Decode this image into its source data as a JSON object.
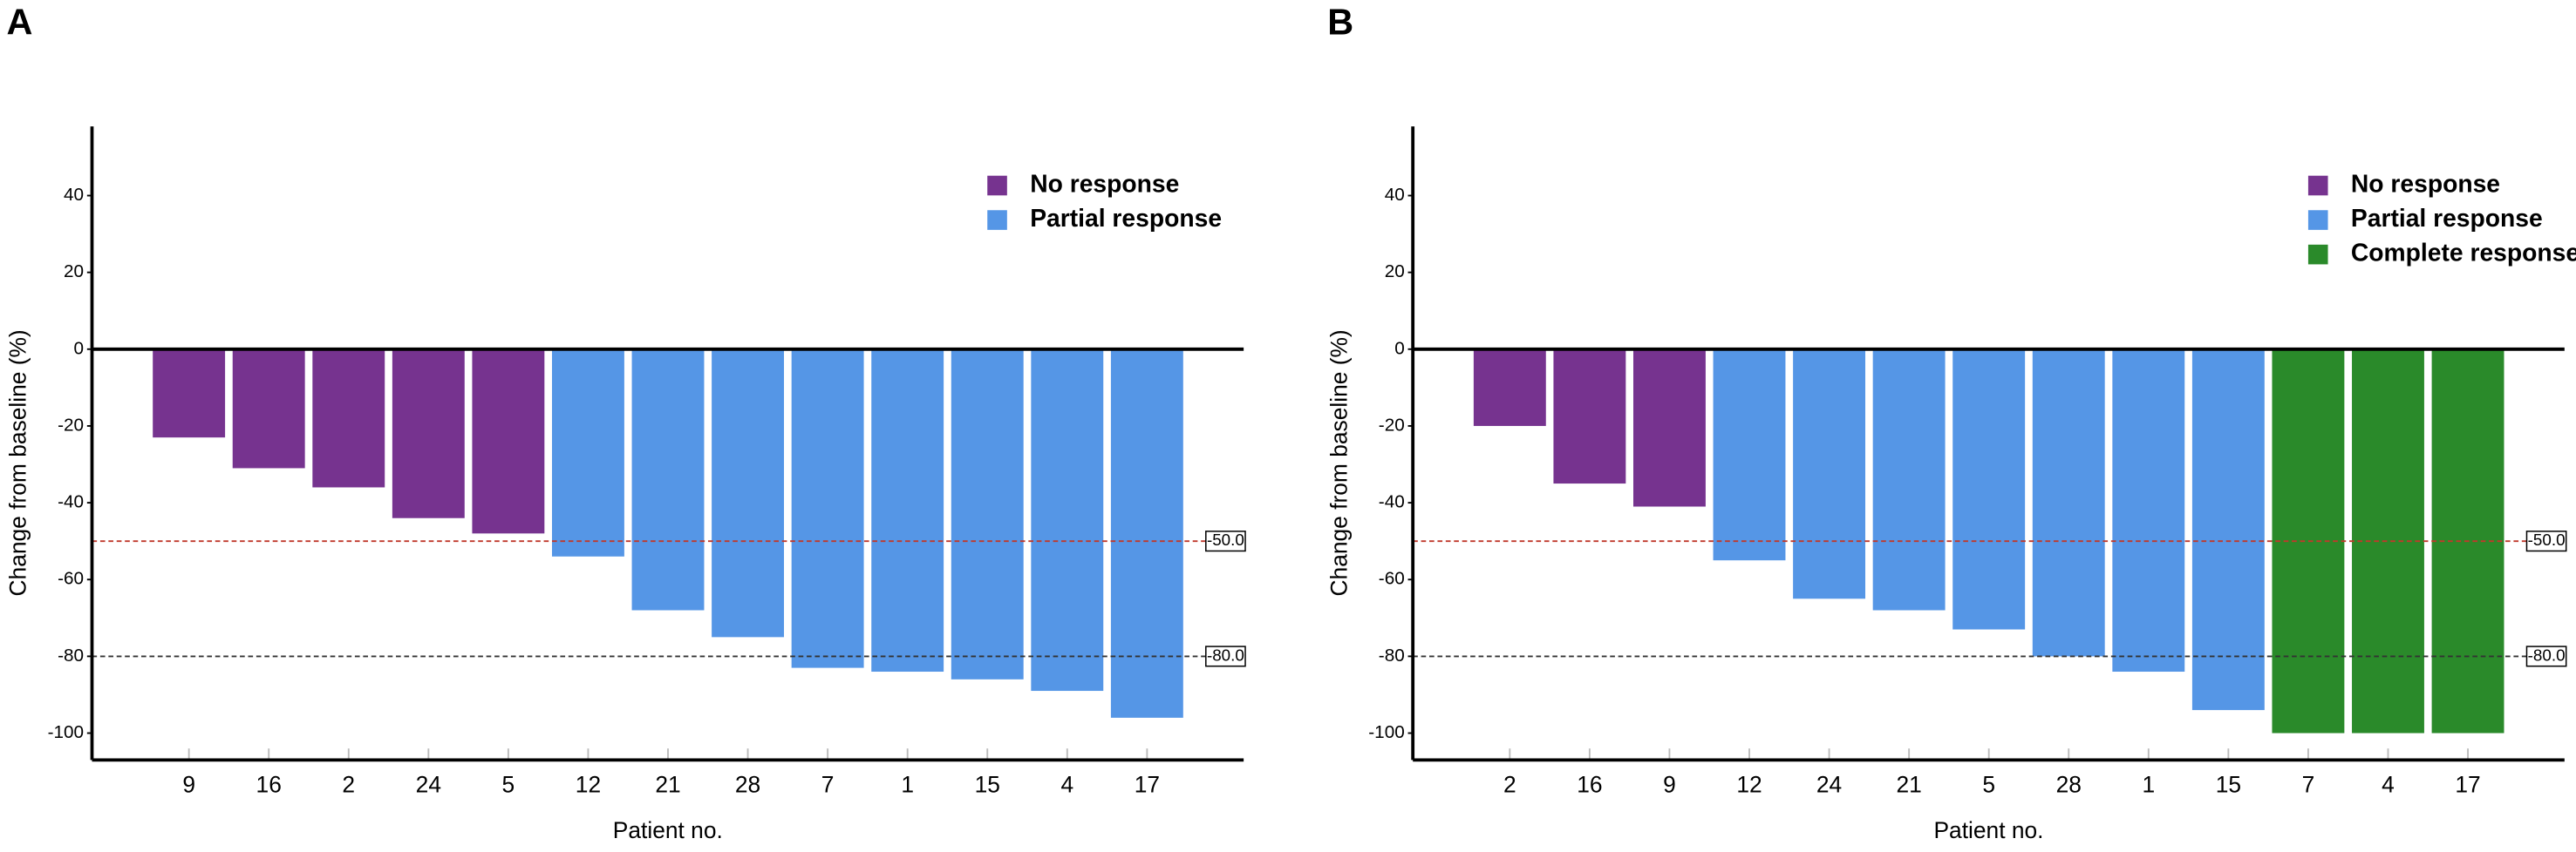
{
  "chart_data": [
    {
      "type": "bar",
      "panel_label": "A",
      "x_label": "Patient no.",
      "y_label": "Change from baseline (%)",
      "categories": [
        "9",
        "16",
        "2",
        "24",
        "5",
        "12",
        "21",
        "28",
        "7",
        "1",
        "15",
        "4",
        "17"
      ],
      "series": [
        {
          "name": "No response",
          "color": "#76338f",
          "values": [
            -23,
            -31,
            -36,
            -44,
            -48,
            null,
            null,
            null,
            null,
            null,
            null,
            null,
            null
          ]
        },
        {
          "name": "Partial response",
          "color": "#5596e6",
          "values": [
            null,
            null,
            null,
            null,
            null,
            -54,
            -68,
            -75,
            -83,
            -84,
            -86,
            -89,
            -96
          ]
        }
      ],
      "ylim": [
        -107,
        58
      ],
      "yticks": [
        -100,
        -80,
        -60,
        -40,
        -20,
        0,
        20,
        40
      ],
      "reference_lines": [
        {
          "value": -50,
          "label": "-50.0",
          "color": "#c0392b"
        },
        {
          "value": -80,
          "label": "-80.0",
          "color": "#333333"
        }
      ],
      "legend": "upper right"
    },
    {
      "type": "bar",
      "panel_label": "B",
      "x_label": "Patient no.",
      "y_label": "Change from baseline (%)",
      "categories": [
        "2",
        "16",
        "9",
        "12",
        "24",
        "21",
        "5",
        "28",
        "1",
        "15",
        "7",
        "4",
        "17"
      ],
      "series": [
        {
          "name": "No response",
          "color": "#76338f",
          "values": [
            -20,
            -35,
            -41,
            null,
            null,
            null,
            null,
            null,
            null,
            null,
            null,
            null,
            null
          ]
        },
        {
          "name": "Partial response",
          "color": "#5596e6",
          "values": [
            null,
            null,
            null,
            -55,
            -65,
            -68,
            -73,
            -80,
            -84,
            -94,
            null,
            null,
            null
          ]
        },
        {
          "name": "Complete response",
          "color": "#2a8a2a",
          "values": [
            null,
            null,
            null,
            null,
            null,
            null,
            null,
            null,
            null,
            null,
            -100,
            -100,
            -100
          ]
        }
      ],
      "ylim": [
        -107,
        58
      ],
      "yticks": [
        -100,
        -80,
        -60,
        -40,
        -20,
        0,
        20,
        40
      ],
      "reference_lines": [
        {
          "value": -50,
          "label": "-50.0",
          "color": "#c0392b"
        },
        {
          "value": -80,
          "label": "-80.0",
          "color": "#333333"
        }
      ],
      "legend": "upper right"
    }
  ]
}
